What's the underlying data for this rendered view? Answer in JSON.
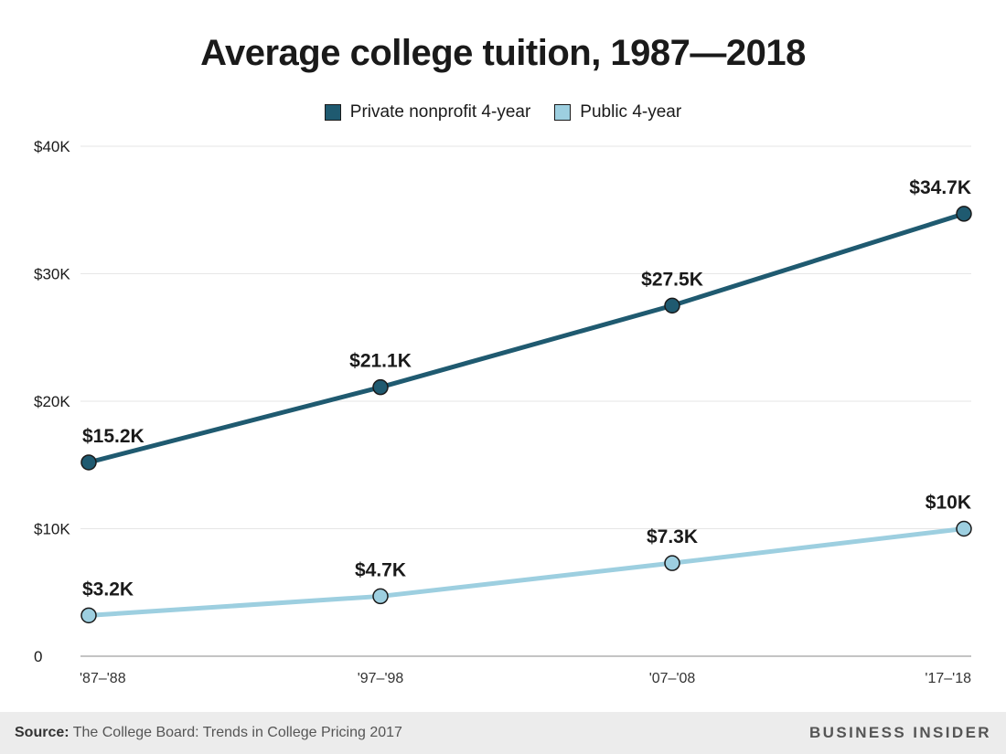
{
  "chart_data": {
    "type": "line",
    "title": "Average college tuition, 1987—2018",
    "categories": [
      "'87–'88",
      "'97–'98",
      "'07–'08",
      "'17–'18"
    ],
    "series": [
      {
        "name": "Private nonprofit 4-year",
        "values": [
          15.2,
          21.1,
          27.5,
          34.7
        ],
        "labels": [
          "$15.2K",
          "$21.1K",
          "$27.5K",
          "$34.7K"
        ],
        "color": "#1f5a70"
      },
      {
        "name": "Public 4-year",
        "values": [
          3.2,
          4.7,
          7.3,
          10
        ],
        "labels": [
          "$3.2K",
          "$4.7K",
          "$7.3K",
          "$10K"
        ],
        "color": "#9dcfe0"
      }
    ],
    "xlabel": "",
    "ylabel": "",
    "ylim": [
      0,
      40
    ],
    "yticks": [
      0,
      10,
      20,
      30,
      40
    ],
    "ytick_labels": [
      "0",
      "$10K",
      "$20K",
      "$30K",
      "$40K"
    ],
    "grid": true,
    "legend": "top-center"
  },
  "footer": {
    "source_label": "Source:",
    "source_text": "The College Board: Trends in College Pricing 2017",
    "brand": "BUSINESS INSIDER"
  },
  "colors": {
    "grid": "#e6e6e6",
    "axis": "#b0b0b0",
    "marker_stroke": "#1a1a1a",
    "text": "#1a1a1a",
    "footer_bg": "#ececec"
  }
}
